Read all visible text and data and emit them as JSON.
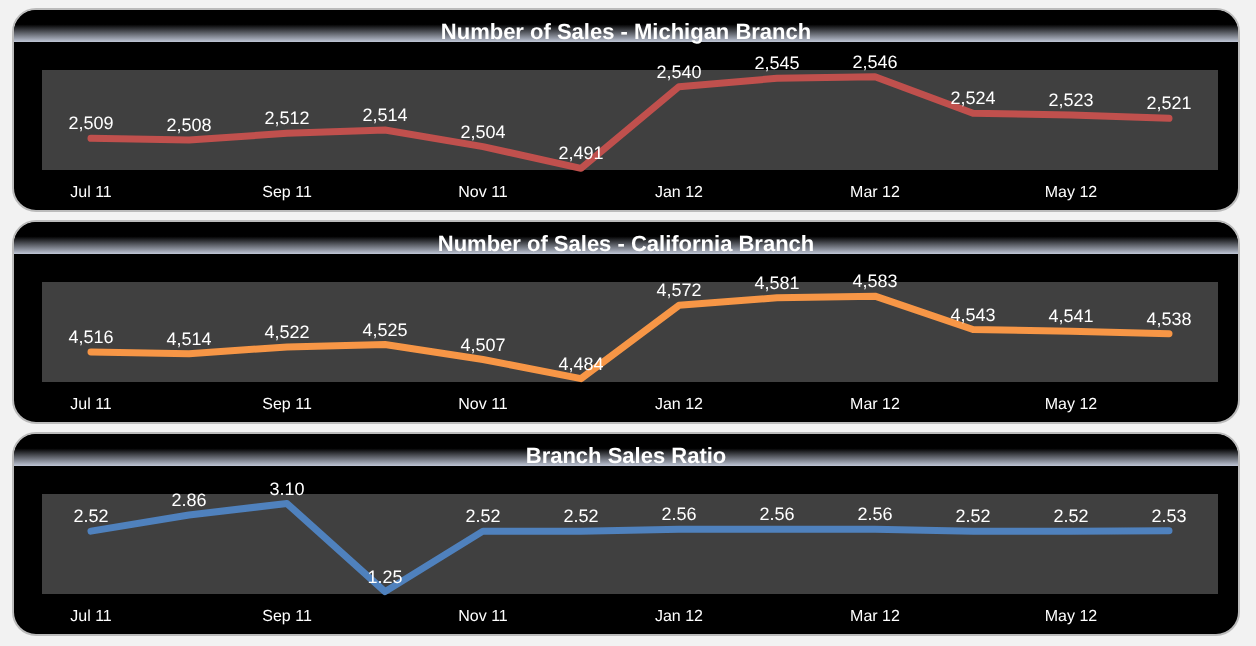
{
  "chart_data": [
    {
      "type": "line",
      "title": "Number of Sales - Michigan Branch",
      "categories": [
        "Jul 11",
        null,
        "Sep 11",
        null,
        "Nov 11",
        null,
        "Jan 12",
        null,
        "Mar 12",
        null,
        "May 12",
        null
      ],
      "series": [
        {
          "color": "#c0504d",
          "values": [
            2509,
            2508,
            2512,
            2514,
            2504,
            2491,
            2540,
            2545,
            2546,
            2524,
            2523,
            2521
          ],
          "value_labels": [
            "2,509",
            "2,508",
            "2,512",
            "2,514",
            "2,504",
            "2,491",
            "2,540",
            "2,545",
            "2,546",
            "2,524",
            "2,523",
            "2,521"
          ]
        }
      ],
      "tick_labels": "x",
      "grid": false,
      "marker": "none",
      "line_style": "solid"
    },
    {
      "type": "line",
      "title": "Number of Sales - California Branch",
      "categories": [
        "Jul 11",
        null,
        "Sep 11",
        null,
        "Nov 11",
        null,
        "Jan 12",
        null,
        "Mar 12",
        null,
        "May 12",
        null
      ],
      "series": [
        {
          "color": "#f79646",
          "values": [
            4516,
            4514,
            4522,
            4525,
            4507,
            4484,
            4572,
            4581,
            4583,
            4543,
            4541,
            4538
          ],
          "value_labels": [
            "4,516",
            "4,514",
            "4,522",
            "4,525",
            "4,507",
            "4,484",
            "4,572",
            "4,581",
            "4,583",
            "4,543",
            "4,541",
            "4,538"
          ]
        }
      ],
      "tick_labels": "x",
      "grid": false,
      "marker": "none",
      "line_style": "solid"
    },
    {
      "type": "line",
      "title": "Branch Sales Ratio",
      "categories": [
        "Jul 11",
        null,
        "Sep 11",
        null,
        "Nov 11",
        null,
        "Jan 12",
        null,
        "Mar 12",
        null,
        "May 12",
        null
      ],
      "series": [
        {
          "color": "#4f81bd",
          "values": [
            2.52,
            2.86,
            3.1,
            1.25,
            2.52,
            2.52,
            2.56,
            2.56,
            2.56,
            2.52,
            2.52,
            2.53
          ],
          "value_labels": [
            "2.52",
            "2.86",
            "3.10",
            "1.25",
            "2.52",
            "2.52",
            "2.56",
            "2.56",
            "2.56",
            "2.52",
            "2.52",
            "2.53"
          ]
        }
      ],
      "tick_labels": "x",
      "grid": false,
      "marker": "none",
      "line_style": "solid"
    }
  ]
}
